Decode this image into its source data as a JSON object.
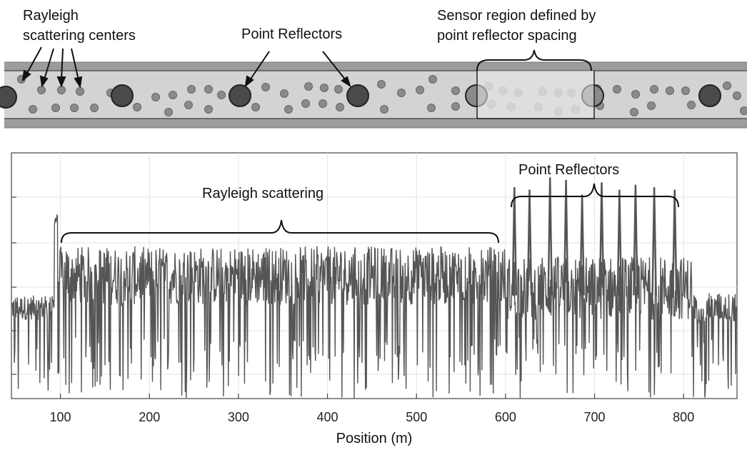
{
  "diagram": {
    "labels": {
      "rayleigh_centers_line1": "Rayleigh",
      "rayleigh_centers_line2": "scattering centers",
      "point_reflectors": "Point Reflectors",
      "sensor_region_line1": "Sensor region defined by",
      "sensor_region_line2": "point reflector spacing"
    }
  },
  "plot": {
    "annotations": {
      "rayleigh_scattering": "Rayleigh scattering",
      "point_reflectors": "Point Reflectors"
    },
    "xlabel": "Position (m)",
    "xticks": [
      "100",
      "200",
      "300",
      "400",
      "500",
      "600",
      "700",
      "800"
    ]
  },
  "chart_data": {
    "type": "line",
    "title": "",
    "xlabel": "Position (m)",
    "ylabel": "",
    "xlim": [
      45,
      860
    ],
    "ylim": [
      0,
      1
    ],
    "grid": true,
    "reflector_positions_m": [
      610,
      627,
      650,
      668,
      686,
      708,
      728,
      746,
      767,
      790
    ],
    "reflector_peak_levels": [
      0.86,
      0.85,
      0.9,
      0.89,
      0.83,
      0.88,
      0.85,
      0.87,
      0.86,
      0.85
    ],
    "regions": [
      {
        "name": "Rayleigh scattering",
        "x_range": [
          100,
          600
        ]
      },
      {
        "name": "Point Reflectors",
        "x_range": [
          610,
          790
        ]
      }
    ],
    "colors": {
      "trace": "#555555",
      "fiber_fill": "#d3d3d3",
      "reflector": "#4a4a4a",
      "scatter_center": "#8a8a8a"
    }
  }
}
